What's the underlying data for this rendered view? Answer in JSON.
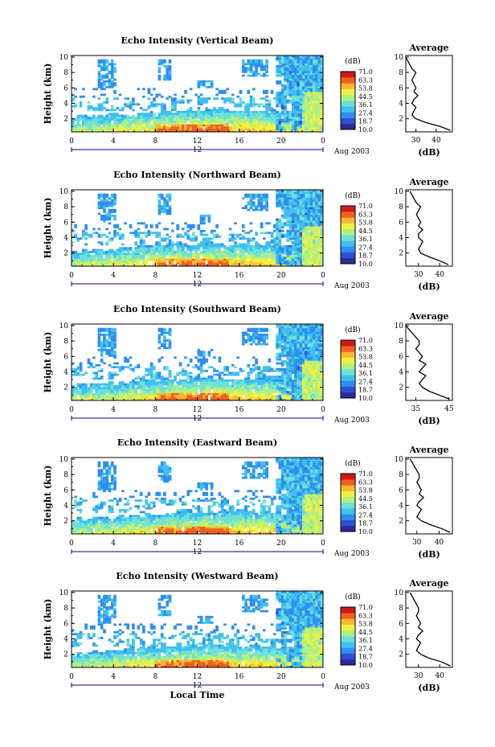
{
  "colors": {
    "colormap": [
      "#2a2a9a",
      "#2f4fd6",
      "#2f8ef0",
      "#3fc0f0",
      "#6fe0d8",
      "#b0f080",
      "#f0f040",
      "#f8b830",
      "#f06020",
      "#d01818"
    ],
    "axis": "#000000",
    "profile_line": "#000000",
    "time_arrow": "#000080"
  },
  "shared": {
    "y_label": "Height (km)",
    "x_date_label": "Aug 2003",
    "x_mid_label": "12",
    "x_axis_title": "Local Time",
    "colorbar_unit": "(dB)",
    "colorbar_ticks": [
      "71.0",
      "63.3",
      "53.8",
      "44.5",
      "36.1",
      "27.4",
      "18.7",
      "10.0"
    ],
    "profile_title": "Average",
    "profile_xlabel": "(dB)"
  },
  "chart_data": [
    {
      "type": "heatmap",
      "title": "Echo Intensity (Vertical Beam)",
      "xlabel": "",
      "ylabel": "Height (km)",
      "xlim": [
        0,
        24
      ],
      "ylim": [
        0.3,
        10.2
      ],
      "x_ticks": [
        "0",
        "4",
        "8",
        "12",
        "16",
        "20",
        "0"
      ],
      "y_ticks": [
        "2",
        "4",
        "6",
        "8",
        "10"
      ],
      "z_range": [
        10.0,
        71.0
      ],
      "z_unit": "dB",
      "profile": {
        "title": "Average",
        "xlabel": "(dB)",
        "x_ticks": [
          "30",
          "40"
        ],
        "xlim": [
          25,
          48
        ],
        "heights": [
          0.5,
          1.0,
          1.5,
          2.0,
          2.5,
          3.0,
          3.5,
          4.0,
          4.5,
          5.0,
          5.5,
          6.0,
          6.5,
          7.0,
          7.5,
          8.0,
          8.5,
          9.0,
          9.5,
          10.0
        ],
        "values": [
          47,
          42,
          35,
          30,
          28,
          29,
          30,
          28,
          29,
          31,
          29,
          30,
          29,
          28,
          29,
          30,
          28,
          27,
          26,
          25
        ]
      }
    },
    {
      "type": "heatmap",
      "title": "Echo Intensity (Northward Beam)",
      "xlabel": "",
      "ylabel": "Height (km)",
      "xlim": [
        0,
        24
      ],
      "ylim": [
        0.3,
        10.2
      ],
      "x_ticks": [
        "0",
        "4",
        "8",
        "12",
        "16",
        "20",
        "0"
      ],
      "y_ticks": [
        "2",
        "4",
        "6",
        "8",
        "10"
      ],
      "z_range": [
        10.0,
        71.0
      ],
      "z_unit": "dB",
      "profile": {
        "title": "Average",
        "xlabel": "(dB)",
        "x_ticks": [
          "30",
          "40"
        ],
        "xlim": [
          24,
          46
        ],
        "heights": [
          0.5,
          1.0,
          1.5,
          2.0,
          2.5,
          3.0,
          3.5,
          4.0,
          4.5,
          5.0,
          5.5,
          6.0,
          6.5,
          7.0,
          7.5,
          8.0,
          8.5,
          9.0,
          9.5,
          10.0
        ],
        "values": [
          44,
          40,
          35,
          31,
          30,
          31,
          32,
          30,
          30,
          32,
          30,
          31,
          30,
          29,
          30,
          31,
          29,
          28,
          27,
          26
        ]
      }
    },
    {
      "type": "heatmap",
      "title": "Echo Intensity (Southward Beam)",
      "xlabel": "",
      "ylabel": "Height (km)",
      "xlim": [
        0,
        24
      ],
      "ylim": [
        0.3,
        10.2
      ],
      "x_ticks": [
        "0",
        "4",
        "8",
        "12",
        "16",
        "20",
        "0"
      ],
      "y_ticks": [
        "2",
        "4",
        "6",
        "8",
        "10"
      ],
      "z_range": [
        10.0,
        71.0
      ],
      "z_unit": "dB",
      "profile": {
        "title": "Average",
        "xlabel": "(dB)",
        "x_ticks": [
          "35",
          "45"
        ],
        "xlim": [
          32,
          46
        ],
        "heights": [
          0.5,
          1.0,
          1.5,
          2.0,
          2.5,
          3.0,
          3.5,
          4.0,
          4.5,
          5.0,
          5.5,
          6.0,
          6.5,
          7.0,
          7.5,
          8.0,
          8.5,
          9.0,
          9.5,
          10.0
        ],
        "values": [
          45,
          42,
          39,
          37,
          36,
          37,
          38,
          36,
          37,
          38,
          36,
          37,
          36,
          35,
          36,
          36,
          35,
          34,
          33,
          32
        ]
      }
    },
    {
      "type": "heatmap",
      "title": "Echo Intensity (Eastward Beam)",
      "xlabel": "",
      "ylabel": "Height (km)",
      "xlim": [
        0,
        24
      ],
      "ylim": [
        0.3,
        10.2
      ],
      "x_ticks": [
        "0",
        "4",
        "8",
        "12",
        "16",
        "20",
        "0"
      ],
      "y_ticks": [
        "2",
        "4",
        "6",
        "8",
        "10"
      ],
      "z_range": [
        10.0,
        71.0
      ],
      "z_unit": "dB",
      "profile": {
        "title": "Average",
        "xlabel": "(dB)",
        "x_ticks": [
          "30",
          "40"
        ],
        "xlim": [
          25,
          46
        ],
        "heights": [
          0.5,
          1.0,
          1.5,
          2.0,
          2.5,
          3.0,
          3.5,
          4.0,
          4.5,
          5.0,
          5.5,
          6.0,
          6.5,
          7.0,
          7.5,
          8.0,
          8.5,
          9.0,
          9.5,
          10.0
        ],
        "values": [
          45,
          41,
          36,
          32,
          30,
          31,
          32,
          30,
          31,
          33,
          31,
          32,
          31,
          30,
          31,
          31,
          30,
          29,
          28,
          27
        ]
      }
    },
    {
      "type": "heatmap",
      "title": "Echo Intensity (Westward Beam)",
      "xlabel": "Local Time",
      "ylabel": "Height (km)",
      "xlim": [
        0,
        24
      ],
      "ylim": [
        0.3,
        10.2
      ],
      "x_ticks": [
        "0",
        "4",
        "8",
        "12",
        "16",
        "20",
        "0"
      ],
      "y_ticks": [
        "2",
        "4",
        "6",
        "8",
        "10"
      ],
      "z_range": [
        10.0,
        71.0
      ],
      "z_unit": "dB",
      "profile": {
        "title": "Average",
        "xlabel": "(dB)",
        "x_ticks": [
          "30",
          "40"
        ],
        "xlim": [
          24,
          46
        ],
        "heights": [
          0.5,
          1.0,
          1.5,
          2.0,
          2.5,
          3.0,
          3.5,
          4.0,
          4.5,
          5.0,
          5.5,
          6.0,
          6.5,
          7.0,
          7.5,
          8.0,
          8.5,
          9.0,
          9.5,
          10.0
        ],
        "values": [
          45,
          41,
          35,
          31,
          29,
          30,
          31,
          29,
          30,
          32,
          30,
          31,
          30,
          29,
          30,
          30,
          29,
          28,
          27,
          26
        ]
      }
    }
  ]
}
